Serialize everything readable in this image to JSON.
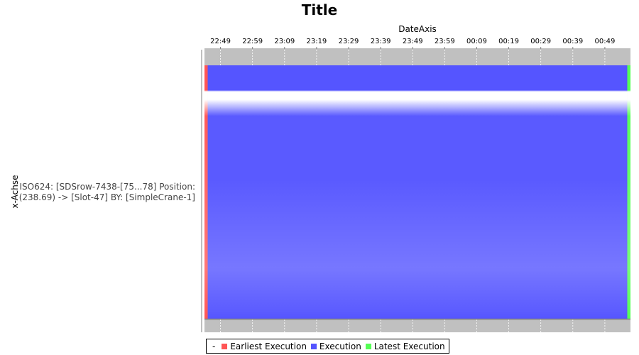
{
  "chart_data": {
    "type": "gantt",
    "title": "Title",
    "time_axis_label": "DateAxis",
    "category_axis_label": "x-Achse",
    "time_ticks": [
      "22:49",
      "22:59",
      "23:09",
      "23:19",
      "23:29",
      "23:39",
      "23:49",
      "23:59",
      "00:09",
      "00:19",
      "00:29",
      "00:39",
      "00:49"
    ],
    "time_range": [
      "22:44",
      "00:57"
    ],
    "category": {
      "line1": "ISO624: [SDSrow-7438-[75...78]  Position:",
      "line2": "(238.69) -> [Slot-47] BY: [SimpleCrane-1]"
    },
    "tasks": [
      {
        "series": "Earliest Execution",
        "start": "22:44",
        "end": "22:45"
      },
      {
        "series": "Execution",
        "start": "22:45",
        "end": "00:56"
      },
      {
        "series": "Latest Execution",
        "start": "00:56",
        "end": "00:57"
      }
    ],
    "legend": {
      "dash": "-",
      "items": [
        {
          "label": "Earliest Execution",
          "color": "#ff5555"
        },
        {
          "label": "Execution",
          "color": "#5555ff"
        },
        {
          "label": "Latest Execution",
          "color": "#55ff55"
        }
      ],
      "position": "bottom"
    },
    "grid": true,
    "plot_background": "#c0c0c0"
  }
}
